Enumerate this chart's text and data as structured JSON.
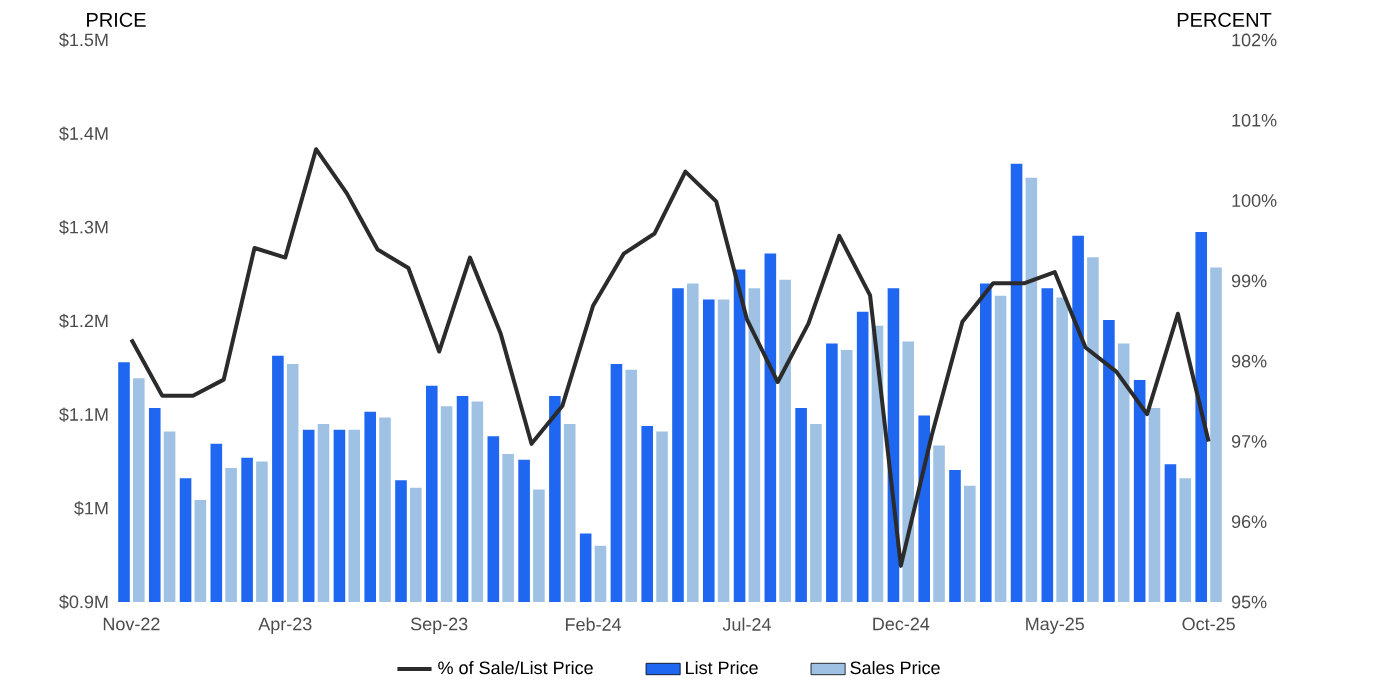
{
  "chart_data": {
    "type": "bar",
    "categories": [
      "Nov-22",
      null,
      null,
      null,
      null,
      "Apr-23",
      null,
      null,
      null,
      null,
      "Sep-23",
      null,
      null,
      null,
      null,
      "Feb-24",
      null,
      null,
      null,
      null,
      "Jul-24",
      null,
      null,
      null,
      null,
      "Dec-24",
      null,
      null,
      null,
      null,
      "May-25",
      null,
      null,
      null,
      null,
      "Oct-25"
    ],
    "ylabel": "PRICE",
    "y2label": "PERCENT",
    "ylim": [
      0.9,
      1.5
    ],
    "yticks": [
      {
        "value": 0.9,
        "label": "$0.9M"
      },
      {
        "value": 1.0,
        "label": "$1M"
      },
      {
        "value": 1.1,
        "label": "$1.1M"
      },
      {
        "value": 1.2,
        "label": "$1.2M"
      },
      {
        "value": 1.3,
        "label": "$1.3M"
      },
      {
        "value": 1.4,
        "label": "$1.4M"
      },
      {
        "value": 1.5,
        "label": "$1.5M"
      }
    ],
    "y2lim": [
      95,
      102
    ],
    "y2ticks": [
      {
        "value": 95,
        "label": "95%"
      },
      {
        "value": 96,
        "label": "96%"
      },
      {
        "value": 97,
        "label": "97%"
      },
      {
        "value": 98,
        "label": "98%"
      },
      {
        "value": 99,
        "label": "99%"
      },
      {
        "value": 100,
        "label": "100%"
      },
      {
        "value": 101,
        "label": "101%"
      },
      {
        "value": 102,
        "label": "102%"
      }
    ],
    "legend": "bottom",
    "series": [
      {
        "name": "% of Sale/List Price",
        "type": "line",
        "axis": "y2",
        "color": "#2b2b2b",
        "values": [
          98.27,
          97.57,
          97.57,
          97.77,
          99.41,
          99.29,
          100.64,
          100.09,
          99.39,
          99.16,
          98.12,
          99.29,
          98.34,
          96.97,
          97.44,
          98.69,
          99.34,
          99.59,
          100.36,
          99.99,
          98.52,
          97.74,
          98.47,
          99.56,
          98.82,
          95.45,
          97.07,
          98.49,
          98.97,
          98.97,
          99.11,
          98.17,
          97.87,
          97.34,
          98.59,
          97.0
        ]
      },
      {
        "name": "List Price",
        "color": "#1f66f0",
        "values": [
          1.156,
          1.107,
          1.032,
          1.069,
          1.054,
          1.163,
          1.084,
          1.084,
          1.103,
          1.03,
          1.131,
          1.12,
          1.077,
          1.052,
          1.12,
          0.973,
          1.154,
          1.088,
          1.235,
          1.223,
          1.255,
          1.272,
          1.107,
          1.176,
          1.21,
          1.235,
          1.099,
          1.041,
          1.24,
          1.368,
          1.235,
          1.291,
          1.201,
          1.137,
          1.047,
          1.295
        ]
      },
      {
        "name": "Sales Price",
        "color": "#9fc2e4",
        "values": [
          1.139,
          1.082,
          1.009,
          1.043,
          1.05,
          1.154,
          1.09,
          1.084,
          1.097,
          1.022,
          1.109,
          1.114,
          1.058,
          1.02,
          1.09,
          0.96,
          1.148,
          1.082,
          1.24,
          1.223,
          1.235,
          1.244,
          1.09,
          1.169,
          1.195,
          1.178,
          1.067,
          1.024,
          1.227,
          1.353,
          1.225,
          1.268,
          1.176,
          1.107,
          1.032,
          1.257
        ]
      }
    ]
  }
}
